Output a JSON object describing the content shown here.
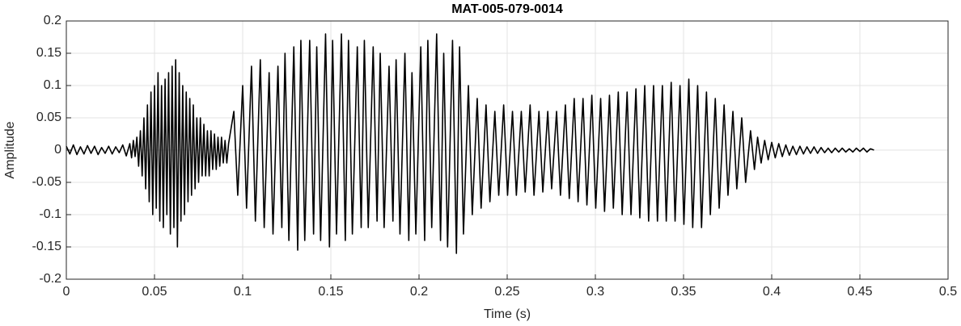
{
  "chart_data": {
    "type": "line",
    "title": "MAT-005-079-0014",
    "xlabel": "Time (s)",
    "ylabel": "Amplitude",
    "color": "#000000",
    "grid": true,
    "xlim": [
      0,
      0.5
    ],
    "xticks": [
      0,
      0.05,
      0.1,
      0.15,
      0.2,
      0.25,
      0.3,
      0.35,
      0.4,
      0.45,
      0.5
    ],
    "ylim": [
      -0.2,
      0.2
    ],
    "yticks": [
      -0.2,
      -0.15,
      -0.1,
      -0.05,
      0,
      0.05,
      0.1,
      0.15,
      0.2
    ],
    "x": [
      0,
      0.002,
      0.004,
      0.006,
      0.008,
      0.01,
      0.012,
      0.014,
      0.016,
      0.018,
      0.02,
      0.022,
      0.024,
      0.026,
      0.028,
      0.03,
      0.032,
      0.034,
      0.036,
      0.037,
      0.038,
      0.039,
      0.04,
      0.041,
      0.042,
      0.043,
      0.044,
      0.045,
      0.046,
      0.047,
      0.048,
      0.049,
      0.05,
      0.051,
      0.052,
      0.053,
      0.054,
      0.055,
      0.056,
      0.057,
      0.058,
      0.059,
      0.06,
      0.061,
      0.062,
      0.063,
      0.064,
      0.065,
      0.066,
      0.067,
      0.068,
      0.069,
      0.07,
      0.071,
      0.072,
      0.073,
      0.074,
      0.075,
      0.076,
      0.077,
      0.078,
      0.079,
      0.08,
      0.081,
      0.082,
      0.083,
      0.084,
      0.085,
      0.086,
      0.087,
      0.088,
      0.089,
      0.09,
      0.091,
      0.092,
      0.095,
      0.0972,
      0.1,
      0.1022,
      0.105,
      0.1072,
      0.11,
      0.1122,
      0.115,
      0.1172,
      0.12,
      0.1222,
      0.124,
      0.1262,
      0.129,
      0.1312,
      0.133,
      0.1352,
      0.138,
      0.1402,
      0.142,
      0.1442,
      0.147,
      0.1492,
      0.151,
      0.1532,
      0.156,
      0.1582,
      0.16,
      0.1622,
      0.165,
      0.1672,
      0.169,
      0.1712,
      0.174,
      0.1762,
      0.178,
      0.1802,
      0.183,
      0.1852,
      0.187,
      0.1892,
      0.192,
      0.1942,
      0.196,
      0.1982,
      0.201,
      0.2032,
      0.205,
      0.2072,
      0.21,
      0.2122,
      0.214,
      0.2162,
      0.219,
      0.2212,
      0.223,
      0.2252,
      0.228,
      0.2302,
      0.233,
      0.2352,
      0.238,
      0.2402,
      0.243,
      0.2452,
      0.248,
      0.2502,
      0.253,
      0.2552,
      0.258,
      0.2602,
      0.263,
      0.2652,
      0.268,
      0.2702,
      0.273,
      0.2752,
      0.278,
      0.2802,
      0.283,
      0.2852,
      0.288,
      0.2902,
      0.293,
      0.2952,
      0.298,
      0.3002,
      0.303,
      0.3052,
      0.308,
      0.3102,
      0.313,
      0.3152,
      0.318,
      0.3202,
      0.323,
      0.3252,
      0.328,
      0.3302,
      0.333,
      0.3352,
      0.338,
      0.3402,
      0.343,
      0.3452,
      0.348,
      0.3502,
      0.353,
      0.3552,
      0.358,
      0.3602,
      0.363,
      0.3652,
      0.368,
      0.3702,
      0.373,
      0.3752,
      0.378,
      0.3802,
      0.383,
      0.3852,
      0.388,
      0.3902,
      0.392,
      0.394,
      0.396,
      0.398,
      0.4,
      0.402,
      0.404,
      0.406,
      0.408,
      0.41,
      0.412,
      0.414,
      0.416,
      0.418,
      0.42,
      0.422,
      0.424,
      0.426,
      0.428,
      0.43,
      0.432,
      0.434,
      0.436,
      0.438,
      0.44,
      0.442,
      0.444,
      0.446,
      0.448,
      0.45,
      0.452,
      0.454,
      0.456,
      0.458
    ],
    "values": [
      0.006,
      -0.006,
      0.008,
      -0.007,
      0.005,
      -0.006,
      0.007,
      -0.005,
      0.006,
      -0.007,
      0.004,
      -0.005,
      0.006,
      -0.006,
      0.005,
      -0.004,
      0.008,
      -0.009,
      0.01,
      -0.012,
      0.015,
      -0.01,
      0.02,
      -0.025,
      0.03,
      -0.04,
      0.05,
      -0.06,
      0.07,
      -0.08,
      0.09,
      -0.1,
      0.1,
      -0.09,
      0.12,
      -0.11,
      0.1,
      -0.12,
      0.11,
      -0.1,
      0.12,
      -0.13,
      0.13,
      -0.12,
      0.14,
      -0.15,
      0.12,
      -0.11,
      0.1,
      -0.1,
      0.09,
      -0.08,
      0.08,
      -0.07,
      0.07,
      -0.06,
      0.05,
      -0.05,
      0.05,
      -0.04,
      0.04,
      -0.04,
      0.03,
      -0.04,
      0.03,
      -0.03,
      0.025,
      -0.03,
      0.02,
      -0.025,
      0.02,
      -0.02,
      0.015,
      -0.02,
      0.01,
      0.06,
      -0.07,
      0.1,
      -0.09,
      0.13,
      -0.11,
      0.14,
      -0.12,
      0.12,
      -0.13,
      0.13,
      -0.12,
      0.15,
      -0.14,
      0.16,
      -0.155,
      0.17,
      -0.14,
      0.17,
      -0.13,
      0.16,
      -0.14,
      0.18,
      -0.15,
      0.17,
      -0.13,
      0.18,
      -0.14,
      0.17,
      -0.13,
      0.16,
      -0.12,
      0.17,
      -0.12,
      0.16,
      -0.11,
      0.15,
      -0.12,
      0.13,
      -0.11,
      0.14,
      -0.13,
      0.15,
      -0.14,
      0.12,
      -0.13,
      0.16,
      -0.14,
      0.17,
      -0.12,
      0.18,
      -0.14,
      0.15,
      -0.15,
      0.17,
      -0.16,
      0.16,
      -0.13,
      0.1,
      -0.1,
      0.08,
      -0.09,
      0.07,
      -0.08,
      0.06,
      -0.07,
      0.07,
      -0.07,
      0.06,
      -0.07,
      0.06,
      -0.065,
      0.07,
      -0.07,
      0.06,
      -0.065,
      0.06,
      -0.06,
      0.06,
      -0.07,
      0.07,
      -0.075,
      0.08,
      -0.08,
      0.08,
      -0.085,
      0.085,
      -0.09,
      0.08,
      -0.095,
      0.085,
      -0.09,
      0.09,
      -0.1,
      0.09,
      -0.1,
      0.095,
      -0.105,
      0.1,
      -0.11,
      0.1,
      -0.11,
      0.1,
      -0.11,
      0.105,
      -0.11,
      0.1,
      -0.115,
      0.11,
      -0.12,
      0.1,
      -0.12,
      0.09,
      -0.1,
      0.08,
      -0.09,
      0.07,
      -0.07,
      0.06,
      -0.06,
      0.05,
      -0.05,
      0.03,
      -0.03,
      0.02,
      -0.02,
      0.015,
      -0.015,
      0.012,
      -0.012,
      0.01,
      -0.01,
      0.008,
      -0.008,
      0.006,
      -0.007,
      0.006,
      -0.006,
      0.005,
      -0.005,
      0.005,
      -0.005,
      0.004,
      -0.004,
      0.003,
      -0.004,
      0.003,
      -0.003,
      0.003,
      -0.003,
      0.002,
      -0.003,
      0.003,
      -0.002,
      0.003,
      -0.003,
      0.002,
      0
    ]
  }
}
